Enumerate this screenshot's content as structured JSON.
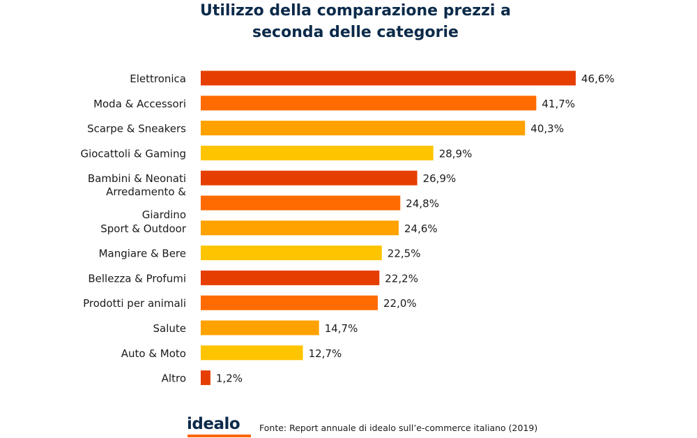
{
  "chart_data": {
    "type": "bar",
    "orientation": "horizontal",
    "title": [
      "Utilizzo della comparazione prezzi a",
      "seconda delle categorie"
    ],
    "categories": [
      "Elettronica",
      "Moda & Accessori",
      "Scarpe & Sneakers",
      "Giocattoli & Gaming",
      "Bambini & Neonati",
      "Arredamento & Giardino",
      "Sport & Outdoor",
      "Mangiare & Bere",
      "Bellezza & Profumi",
      "Prodotti per animali",
      "Salute",
      "Auto & Moto",
      "Altro"
    ],
    "values": [
      46.6,
      41.7,
      40.3,
      28.9,
      26.9,
      24.8,
      24.6,
      22.5,
      22.2,
      22.0,
      14.7,
      12.7,
      1.2
    ],
    "value_labels": [
      "46,6%",
      "41,7%",
      "40,3%",
      "28,9%",
      "26,9%",
      "24,8%",
      "24,6%",
      "22,5%",
      "22,2%",
      "22,0%",
      "14,7%",
      "12,7%",
      "1,2%"
    ],
    "bar_colors": [
      "#e63e00",
      "#ff6b00",
      "#ffa200",
      "#ffc400",
      "#e63e00",
      "#ff6b00",
      "#ffa200",
      "#ffc400",
      "#e63e00",
      "#ff6b00",
      "#ffa200",
      "#ffc400",
      "#e63e00"
    ],
    "xlim": [
      0,
      46.6
    ],
    "grid": false,
    "legend": "none"
  },
  "footer": {
    "logo": "idealo",
    "logo_color": "#0b2a4a",
    "logo_accent": "#ff6600",
    "source": "Fonte: Report annuale di idealo sull’e-commerce italiano (2019)"
  },
  "colors": {
    "title": "#0b2a4a",
    "labels": "#1a1a1a"
  }
}
